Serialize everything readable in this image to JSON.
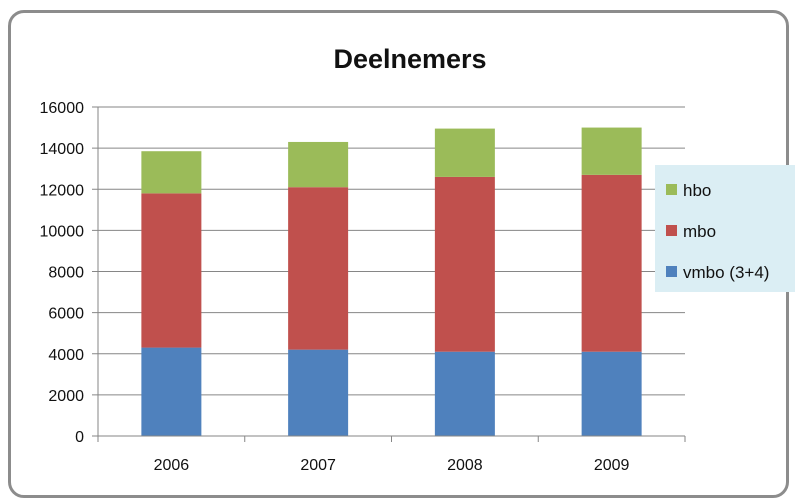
{
  "chart_data": {
    "type": "bar",
    "stacked": true,
    "title": "Deelnemers",
    "xlabel": "",
    "ylabel": "",
    "categories": [
      "2006",
      "2007",
      "2008",
      "2009"
    ],
    "series": [
      {
        "name": "vmbo (3+4)",
        "color": "#4f81bd",
        "values": [
          4300,
          4200,
          4100,
          4100
        ]
      },
      {
        "name": "mbo",
        "color": "#c0504d",
        "values": [
          7500,
          7900,
          8500,
          8600
        ]
      },
      {
        "name": "hbo",
        "color": "#9bbb59",
        "values": [
          2050,
          2200,
          2350,
          2300
        ]
      }
    ],
    "ylim": [
      0,
      16000
    ],
    "yticks": [
      "0",
      "2000",
      "4000",
      "6000",
      "8000",
      "10000",
      "12000",
      "14000",
      "16000"
    ],
    "grid": true,
    "legend_position": "right",
    "legend_background": "#dbeef4"
  }
}
